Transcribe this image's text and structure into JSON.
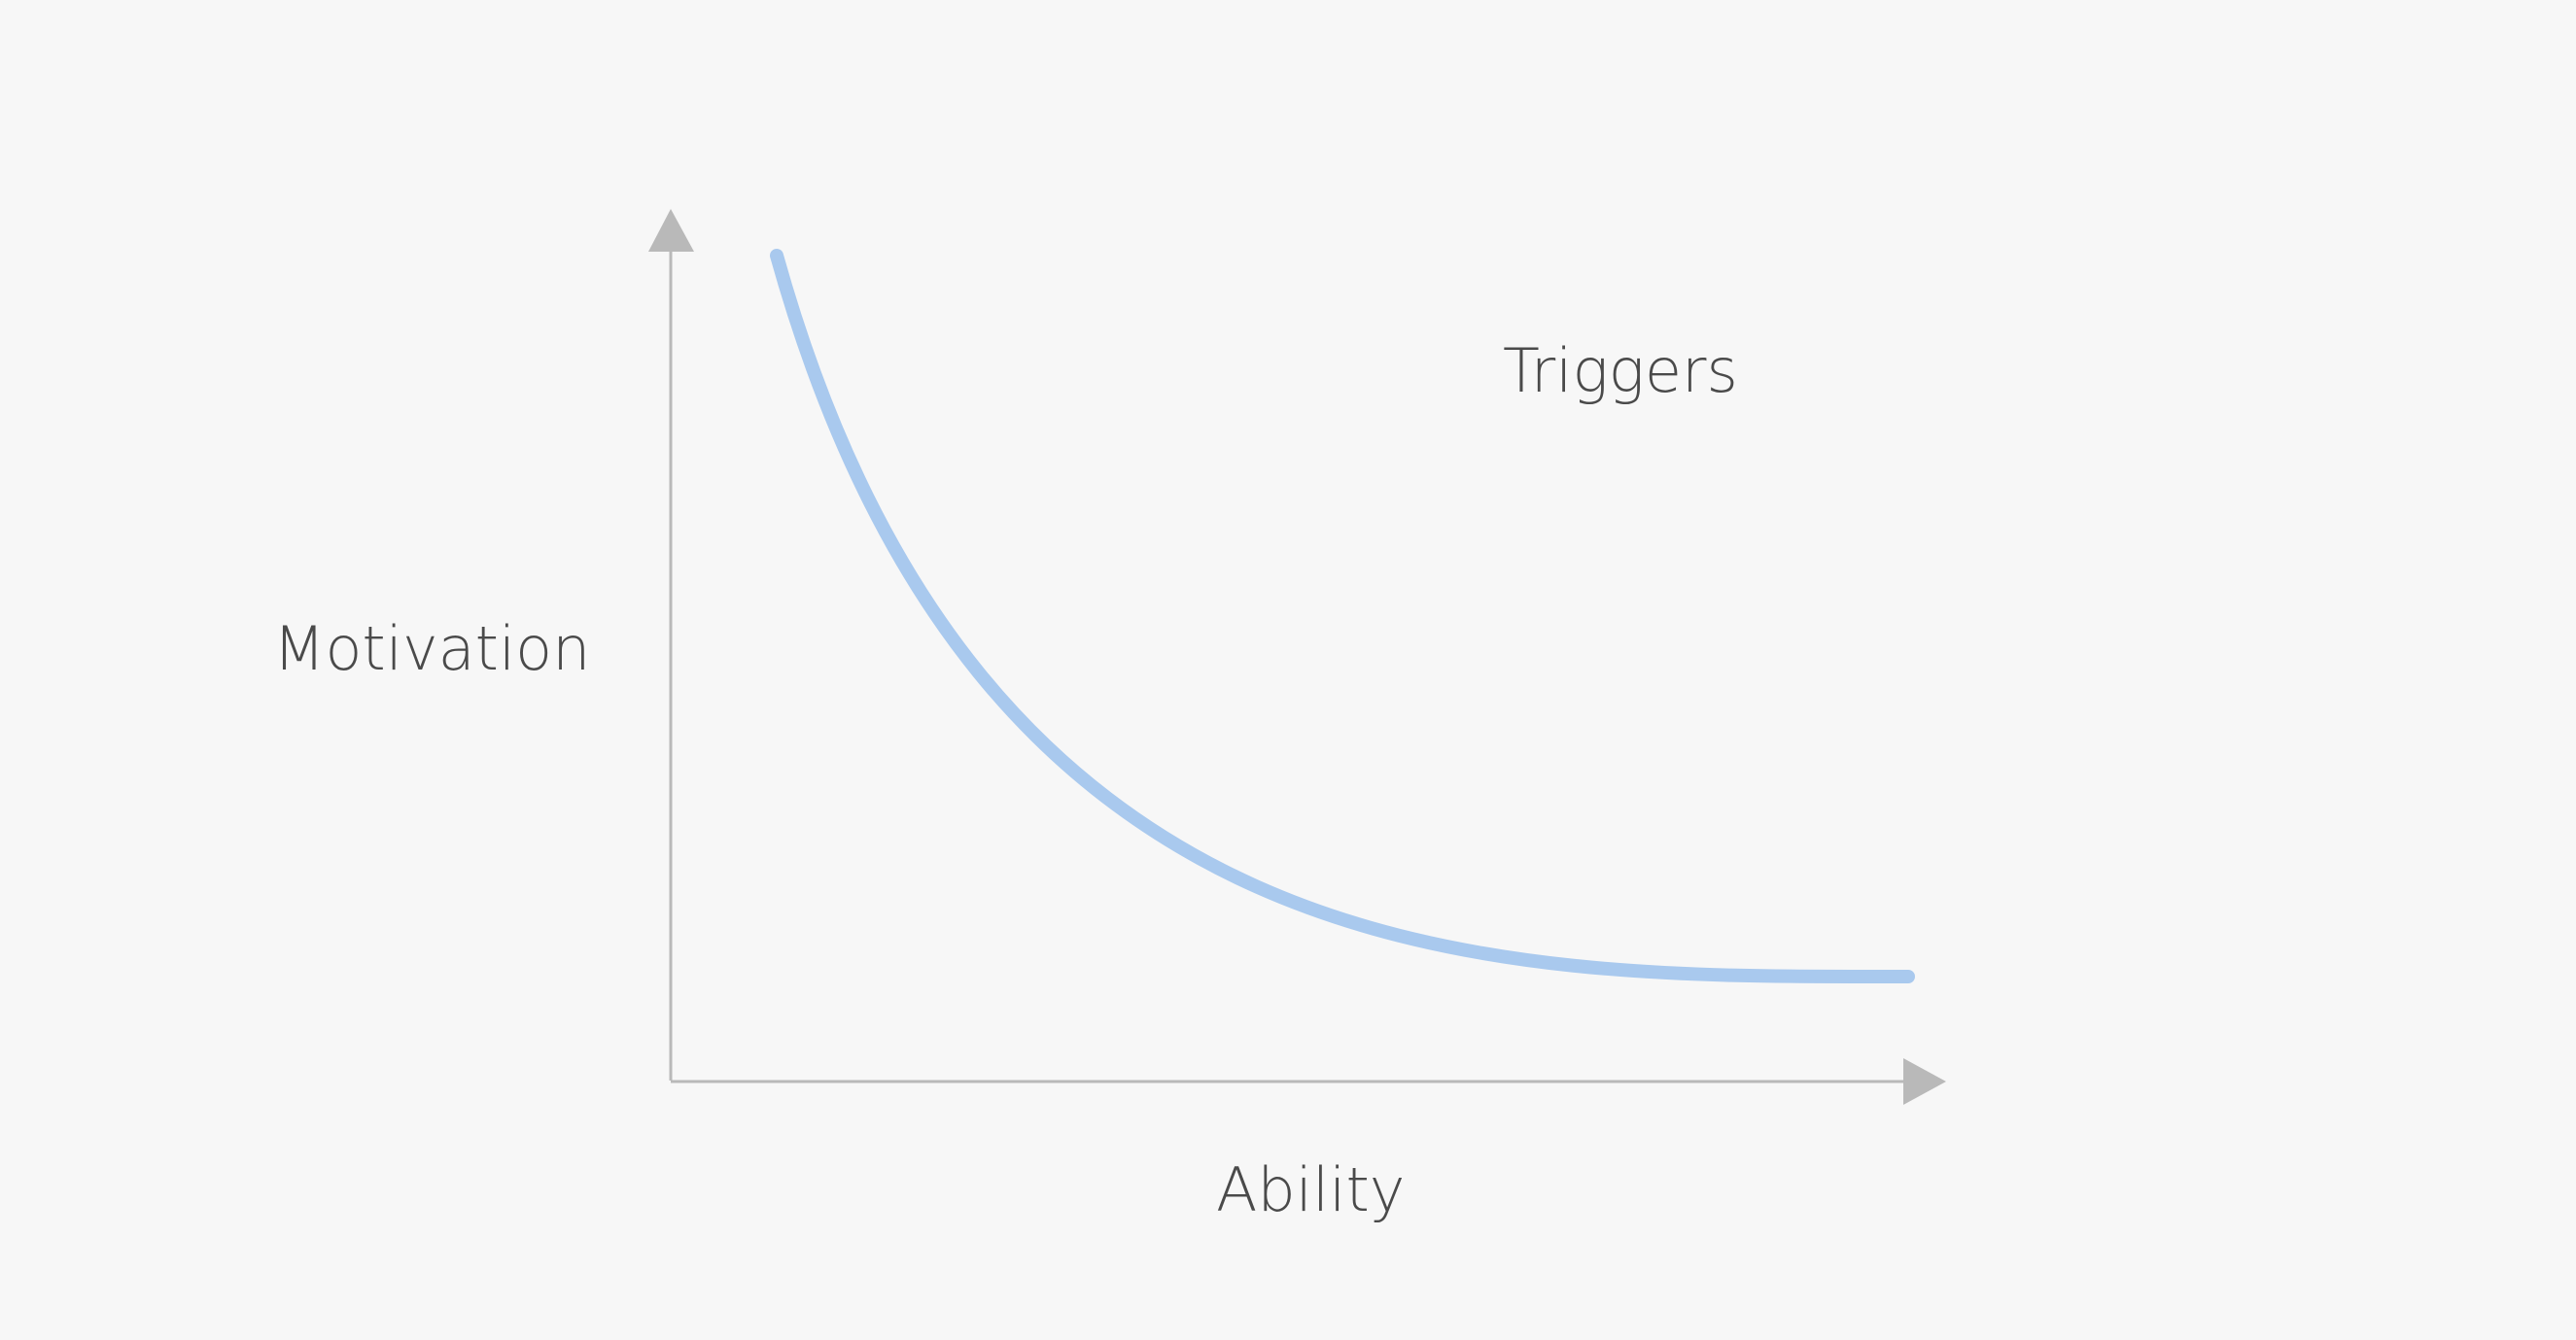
{
  "diagram": {
    "y_axis_label": "Motivation",
    "x_axis_label": "Ability",
    "zone_label": "Triggers",
    "curve_color": "#a9c9ee",
    "axis_color": "#b9b9b9",
    "text_color": "#4a4a4a",
    "background_color": "#f7f7f7"
  }
}
